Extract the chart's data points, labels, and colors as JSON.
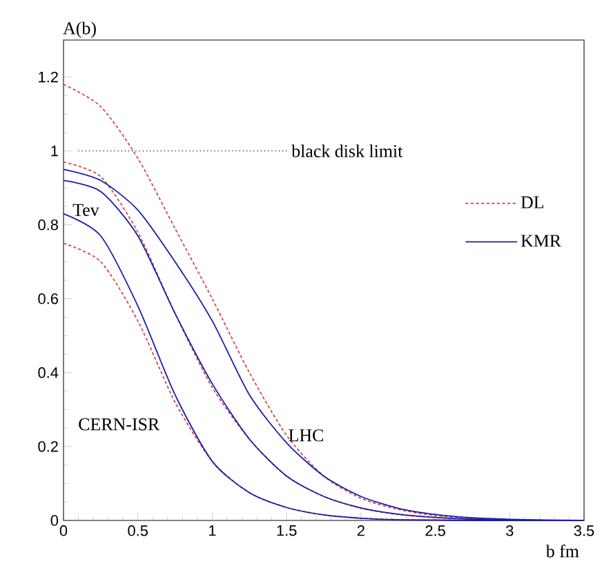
{
  "chart_data": {
    "type": "line",
    "xlabel": "b fm",
    "ylabel": "A(b)",
    "xlim": [
      0,
      3.5
    ],
    "ylim": [
      0,
      1.3
    ],
    "xticks": [
      0,
      0.5,
      1,
      1.5,
      2,
      2.5,
      3,
      3.5
    ],
    "yticks": [
      0,
      0.2,
      0.4,
      0.6,
      0.8,
      1,
      1.2
    ],
    "grid": false,
    "legend": "right",
    "marker": "none",
    "x": [
      0,
      0.25,
      0.5,
      0.75,
      1,
      1.25,
      1.5,
      1.75,
      2,
      2.25,
      2.5,
      2.75,
      3,
      3.25,
      3.5
    ],
    "series": [
      {
        "name": "DL",
        "color": "#d04848",
        "line_style": "dashed",
        "values": [
          1.18,
          1.12,
          0.98,
          0.79,
          0.6,
          0.4,
          0.23,
          0.12,
          0.06,
          0.03,
          0.013,
          0.006,
          0.002,
          null,
          null
        ]
      },
      {
        "color": "#d04848",
        "line_style": "dashed",
        "values": [
          0.97,
          0.93,
          0.78,
          0.56,
          0.36,
          0.22,
          0.12,
          0.065,
          0.033,
          0.016,
          0.008,
          0.003,
          0.001,
          null,
          null
        ]
      },
      {
        "color": "#d04848",
        "line_style": "dashed",
        "values": [
          0.75,
          0.7,
          0.54,
          0.32,
          0.16,
          0.075,
          0.035,
          0.015,
          0.006,
          0.002,
          0.001,
          0,
          0,
          null,
          null
        ]
      },
      {
        "name": "KMR",
        "color": "#1c1ca8",
        "line_style": "solid",
        "values": [
          0.95,
          0.92,
          0.84,
          0.7,
          0.54,
          0.34,
          0.21,
          0.12,
          0.065,
          0.033,
          0.016,
          0.007,
          0.003,
          0.001,
          0
        ]
      },
      {
        "color": "#1c1ca8",
        "line_style": "solid",
        "values": [
          0.92,
          0.89,
          0.77,
          0.56,
          0.37,
          0.22,
          0.12,
          0.065,
          0.034,
          0.017,
          0.008,
          0.003,
          0.001,
          0,
          0
        ]
      },
      {
        "color": "#1c1ca8",
        "line_style": "solid",
        "values": [
          0.83,
          0.77,
          0.58,
          0.34,
          0.16,
          0.075,
          0.035,
          0.015,
          0.006,
          0.002,
          0.001,
          0,
          0,
          0,
          0
        ]
      },
      {
        "name": "black disk limit",
        "color": "#000000",
        "line_style": "dotted",
        "x": [
          0.1,
          1.5
        ],
        "values": [
          1,
          1
        ]
      }
    ],
    "annotations": [
      {
        "text": "Tev",
        "x": 0.05,
        "y": 0.84
      },
      "CERN-ISR",
      {
        "text": "LHC",
        "x": 1.5,
        "y": 0.23
      }
    ]
  }
}
